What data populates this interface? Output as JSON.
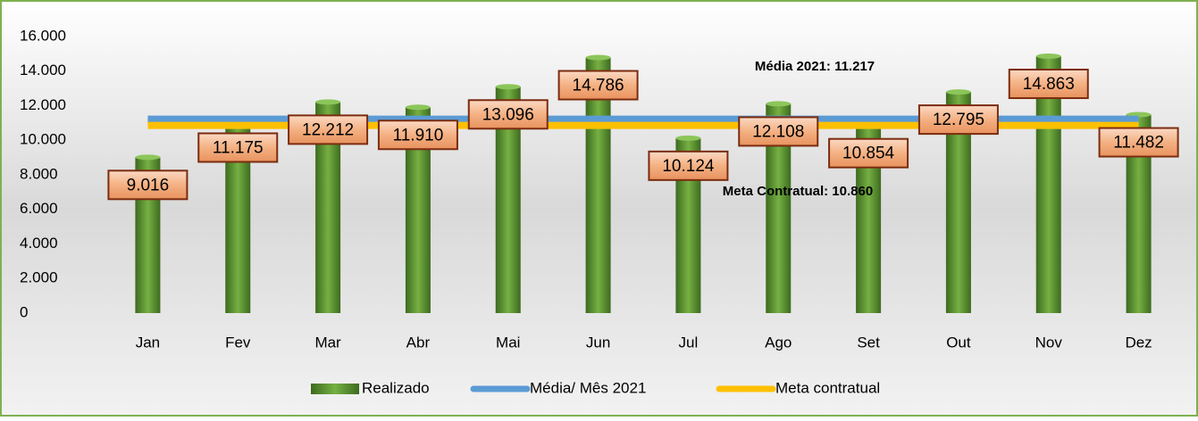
{
  "chart_data": {
    "type": "bar",
    "categories": [
      "Jan",
      "Fev",
      "Mar",
      "Abr",
      "Mai",
      "Jun",
      "Jul",
      "Ago",
      "Set",
      "Out",
      "Nov",
      "Dez"
    ],
    "series": [
      {
        "name": "Realizado",
        "type": "bar",
        "color": "#5a8a32",
        "values": [
          9016,
          11175,
          12212,
          11910,
          13096,
          14786,
          10124,
          12108,
          10854,
          12795,
          14863,
          11482
        ],
        "value_labels": [
          "9.016",
          "11.175",
          "12.212",
          "11.910",
          "13.096",
          "14.786",
          "10.124",
          "12.108",
          "10.854",
          "12.795",
          "14.863",
          "11.482"
        ]
      },
      {
        "name": "Média/ Mês 2021",
        "type": "line",
        "color": "#5b9bd5",
        "values": [
          11217,
          11217,
          11217,
          11217,
          11217,
          11217,
          11217,
          11217,
          11217,
          11217,
          11217,
          11217
        ]
      },
      {
        "name": "Meta contratual",
        "type": "line",
        "color": "#ffc000",
        "values": [
          10860,
          10860,
          10860,
          10860,
          10860,
          10860,
          10860,
          10860,
          10860,
          10860,
          10860,
          10860
        ]
      }
    ],
    "annotations": [
      "Média 2021: 11.217",
      "Meta Contratual: 10.860"
    ],
    "ylim": [
      0,
      16000
    ],
    "yticks": [
      0,
      {
        "value": 2000,
        "label": "2.000"
      },
      {
        "value": 4000,
        "label": "4.000"
      },
      {
        "value": 6000,
        "label": "6.000"
      },
      {
        "value": 8000,
        "label": "8.000"
      },
      {
        "value": 10000,
        "label": "10.000"
      },
      {
        "value": 12000,
        "label": "12.000"
      },
      {
        "value": 14000,
        "label": "14.000"
      },
      {
        "value": 16000,
        "label": "16.000"
      }
    ],
    "grid": false,
    "legend": "bottom"
  }
}
